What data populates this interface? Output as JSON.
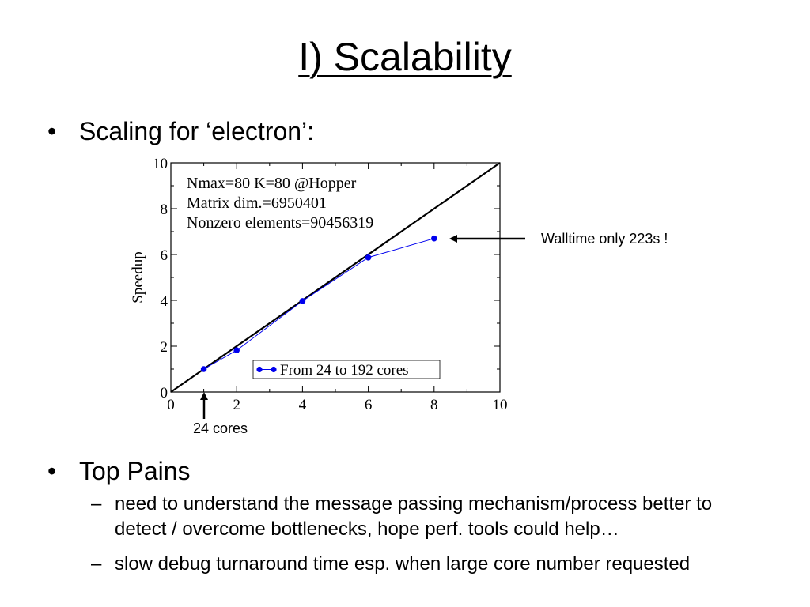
{
  "slide": {
    "title": "I) Scalability",
    "bullets": [
      "Scaling for ‘electron’:",
      "Top Pains"
    ],
    "sub_bullets": [
      "need to understand the message passing mechanism/process better to detect / overcome bottlenecks, hope perf. tools could help…",
      "slow debug turnaround time esp. when large core number requested"
    ]
  },
  "chart_data": {
    "type": "line",
    "ylabel": "Speedup",
    "xlim": [
      0,
      10
    ],
    "ylim": [
      0,
      10
    ],
    "xticks": [
      0,
      2,
      4,
      6,
      8,
      10
    ],
    "yticks": [
      0,
      2,
      4,
      6,
      8,
      10
    ],
    "grid": false,
    "legend_position": "bottom-right",
    "info_lines": [
      "Nmax=80 K=80 @Hopper",
      "Matrix dim.=6950401",
      "Nonzero elements=90456319"
    ],
    "ideal_line": {
      "x": [
        0,
        10
      ],
      "y": [
        0,
        10
      ],
      "color": "#000000"
    },
    "series": [
      {
        "name": "From 24 to 192 cores",
        "color": "#0000ee",
        "x": [
          1,
          2,
          4,
          6,
          8
        ],
        "y": [
          1.0,
          1.82,
          3.97,
          5.87,
          6.7
        ]
      }
    ],
    "annotations": [
      {
        "text": "Walltime only 223s !",
        "x": 8,
        "y": 6.7
      },
      {
        "text": "24 cores",
        "x": 1,
        "y": 0
      }
    ]
  }
}
